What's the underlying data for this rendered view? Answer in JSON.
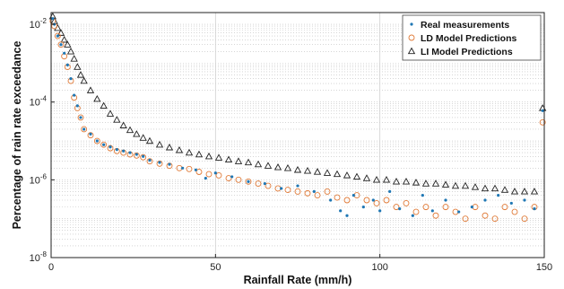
{
  "chart_data": {
    "type": "scatter",
    "title": "",
    "xlabel": "Rainfall Rate (mm/h)",
    "ylabel": "Percentage of rain rate exceedance",
    "xlim": [
      0,
      150
    ],
    "ylim": [
      1e-08,
      0.02
    ],
    "yscale": "log",
    "x_ticks": [
      0,
      50,
      100,
      150
    ],
    "x_tick_labels": [
      "0",
      "50",
      "100",
      "150"
    ],
    "y_ticks": [
      1e-08,
      1e-06,
      0.0001,
      0.01
    ],
    "y_tick_labels": [
      {
        "base": "10",
        "exp": "-8"
      },
      {
        "base": "10",
        "exp": "-6"
      },
      {
        "base": "10",
        "exp": "-4"
      },
      {
        "base": "10",
        "exp": "-2"
      }
    ],
    "grid": "major vertical and minor horizontal dotted",
    "legend_position": "top-right",
    "series": [
      {
        "name": "Real measurements",
        "marker": "dot",
        "color": "#1f77b4",
        "x": [
          0.5,
          1,
          2,
          3,
          4,
          5,
          6,
          7,
          8,
          9,
          10,
          12,
          14,
          16,
          18,
          20,
          22,
          24,
          26,
          28,
          30,
          33,
          36,
          40,
          44,
          47,
          50,
          55,
          60,
          65,
          70,
          75,
          80,
          85,
          88,
          90,
          92,
          95,
          98,
          100,
          103,
          106,
          110,
          113,
          116,
          120,
          124,
          128,
          132,
          136,
          140,
          144,
          147,
          149.5
        ],
        "y": [
          0.014,
          0.01,
          0.005,
          0.003,
          0.0018,
          0.0009,
          0.0004,
          0.00015,
          8e-05,
          4e-05,
          2e-05,
          1.5e-05,
          1e-05,
          8e-06,
          7e-06,
          6e-06,
          5.5e-06,
          5e-06,
          4.5e-06,
          4e-06,
          3.2e-06,
          2.8e-06,
          2.5e-06,
          2e-06,
          1.8e-06,
          1.1e-06,
          1.5e-06,
          1.2e-06,
          9e-07,
          8e-07,
          6e-07,
          7e-07,
          5e-07,
          3e-07,
          1.6e-07,
          1.2e-07,
          4e-07,
          2e-07,
          3e-07,
          1.6e-07,
          5e-07,
          1.8e-07,
          1.2e-07,
          4e-07,
          1.6e-07,
          3e-07,
          1.5e-07,
          2e-07,
          3e-07,
          4e-07,
          2.5e-07,
          3e-07,
          1.8e-07,
          6e-05
        ]
      },
      {
        "name": "LD Model Predictions",
        "marker": "circle",
        "color": "#e07b39",
        "x": [
          0.5,
          1,
          2,
          3,
          4,
          5,
          6,
          7,
          8,
          9,
          10,
          12,
          14,
          16,
          18,
          20,
          22,
          24,
          26,
          28,
          30,
          33,
          36,
          39,
          42,
          45,
          48,
          51,
          54,
          57,
          60,
          63,
          66,
          69,
          72,
          75,
          78,
          81,
          84,
          87,
          90,
          93,
          96,
          99,
          102,
          105,
          108,
          111,
          114,
          117,
          120,
          123,
          126,
          129,
          132,
          135,
          138,
          141,
          144,
          147,
          149.5
        ],
        "y": [
          0.012,
          0.009,
          0.005,
          0.003,
          0.0015,
          0.0008,
          0.00035,
          0.00013,
          7e-05,
          4e-05,
          2e-05,
          1.4e-05,
          1e-05,
          8e-06,
          6.5e-06,
          5.5e-06,
          5e-06,
          4.5e-06,
          4.2e-06,
          3.8e-06,
          3e-06,
          2.6e-06,
          2.3e-06,
          2e-06,
          1.9e-06,
          1.6e-06,
          1.4e-06,
          1.3e-06,
          1.1e-06,
          1e-06,
          9e-07,
          8e-07,
          7e-07,
          6e-07,
          5.5e-07,
          5e-07,
          4.5e-07,
          4e-07,
          5e-07,
          3.5e-07,
          3e-07,
          4e-07,
          3e-07,
          2.5e-07,
          3e-07,
          2e-07,
          2.5e-07,
          1.5e-07,
          2e-07,
          1.2e-07,
          2e-07,
          1.5e-07,
          1e-07,
          2e-07,
          1.2e-07,
          1e-07,
          2e-07,
          1.5e-07,
          1e-07,
          2e-07,
          3e-05
        ]
      },
      {
        "name": "LI Model Predictions",
        "marker": "triangle",
        "color": "#222222",
        "x": [
          0.5,
          1,
          2,
          3,
          4,
          5,
          6,
          7,
          8,
          9,
          10,
          12,
          14,
          16,
          18,
          20,
          22,
          24,
          26,
          28,
          30,
          33,
          36,
          39,
          42,
          45,
          48,
          51,
          54,
          57,
          60,
          63,
          66,
          69,
          72,
          75,
          78,
          81,
          84,
          87,
          90,
          93,
          96,
          99,
          102,
          105,
          108,
          111,
          114,
          117,
          120,
          123,
          126,
          129,
          132,
          135,
          138,
          141,
          144,
          147,
          149.5
        ],
        "y": [
          0.016,
          0.012,
          0.008,
          0.006,
          0.004,
          0.003,
          0.002,
          0.0013,
          0.0008,
          0.0005,
          0.00035,
          0.0002,
          0.00012,
          8e-05,
          5e-05,
          3.5e-05,
          2.5e-05,
          1.9e-05,
          1.5e-05,
          1.2e-05,
          1e-05,
          8e-06,
          6.8e-06,
          5.8e-06,
          5e-06,
          4.5e-06,
          4e-06,
          3.7e-06,
          3.3e-06,
          3e-06,
          2.8e-06,
          2.5e-06,
          2.3e-06,
          2.1e-06,
          2e-06,
          1.8e-06,
          1.7e-06,
          1.6e-06,
          1.5e-06,
          1.4e-06,
          1.3e-06,
          1.2e-06,
          1.1e-06,
          1e-06,
          1e-06,
          9e-07,
          9e-07,
          8.5e-07,
          8e-07,
          8e-07,
          7.5e-07,
          7e-07,
          7e-07,
          6.5e-07,
          6e-07,
          6e-07,
          5.5e-07,
          5e-07,
          5e-07,
          5e-07,
          7e-05
        ]
      }
    ]
  }
}
